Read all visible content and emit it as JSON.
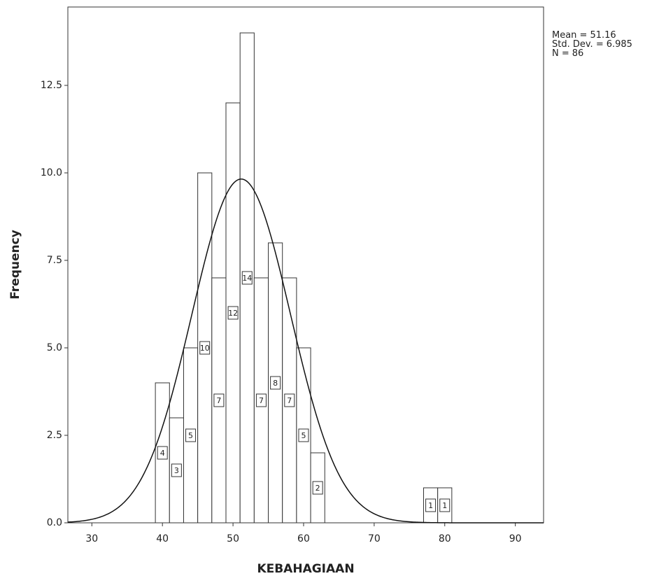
{
  "chart_data": {
    "type": "histogram",
    "bins": [
      39,
      41,
      43,
      45,
      47,
      49,
      51,
      53,
      55,
      57,
      59,
      61,
      63,
      65,
      67,
      69,
      71,
      73,
      75,
      77,
      79,
      81
    ],
    "values": [
      4,
      3,
      5,
      10,
      7,
      12,
      14,
      7,
      8,
      7,
      5,
      2,
      0,
      0,
      0,
      0,
      0,
      0,
      0,
      1,
      1
    ],
    "x_label": "KEBAHAGIAAN",
    "y_label": "Frequency",
    "xlim": [
      26.6,
      94.0
    ],
    "xticks": [
      30,
      40,
      50,
      60,
      70,
      80,
      90
    ],
    "ylim": [
      0,
      14.74
    ],
    "yticks": [
      {
        "value": 0,
        "label": "0.0"
      },
      {
        "value": 2.5,
        "label": "2.5"
      },
      {
        "value": 5,
        "label": "5.0"
      },
      {
        "value": 7.5,
        "label": "7.5"
      },
      {
        "value": 10,
        "label": "10.0"
      },
      {
        "value": 12.5,
        "label": "12.5"
      }
    ],
    "stats": [
      {
        "label": "Mean =",
        "value": 51.16
      },
      {
        "label": "Std. Dev. =",
        "value": 6.985
      },
      {
        "label": "N =",
        "value": 86
      }
    ],
    "color": "#ffffff",
    "normal_curve": true
  }
}
